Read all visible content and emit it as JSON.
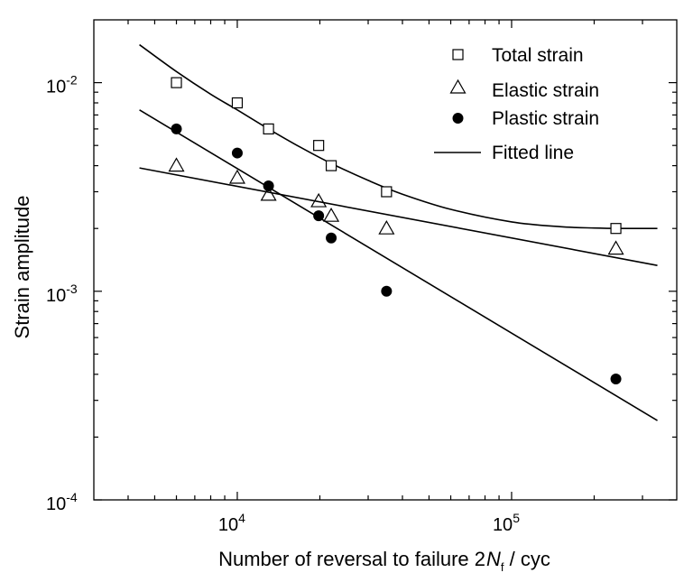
{
  "chart_data": {
    "type": "scatter",
    "title": "",
    "xlabel": {
      "prefix": "Number of reversal to failure 2",
      "italic": "N",
      "subscript": "f",
      "suffix": " / cyc"
    },
    "ylabel": "Strain amplitude",
    "xscale": "log",
    "yscale": "log",
    "xlim": [
      3000,
      400000
    ],
    "ylim": [
      0.0001,
      0.02
    ],
    "x_ticks": [
      {
        "value": 10000,
        "base": "10",
        "exp": "4"
      },
      {
        "value": 100000,
        "base": "10",
        "exp": "5"
      }
    ],
    "y_ticks": [
      {
        "value": 0.0001,
        "base": "10",
        "exp": "-4"
      },
      {
        "value": 0.001,
        "base": "10",
        "exp": "-3"
      },
      {
        "value": 0.01,
        "base": "10",
        "exp": "-2"
      }
    ],
    "grid": false,
    "legend_position": "top-right",
    "series": [
      {
        "name": "Total strain",
        "marker": "open-square",
        "x": [
          6000,
          10000,
          13000,
          19800,
          22000,
          35000,
          240000
        ],
        "y": [
          0.01,
          0.008,
          0.006,
          0.005,
          0.004,
          0.003,
          0.002
        ]
      },
      {
        "name": "Elastic strain",
        "marker": "open-triangle",
        "x": [
          6000,
          10000,
          13000,
          19800,
          22000,
          35000,
          240000
        ],
        "y": [
          0.004,
          0.0035,
          0.0029,
          0.0027,
          0.0023,
          0.002,
          0.0016
        ]
      },
      {
        "name": "Plastic strain",
        "marker": "filled-circle",
        "x": [
          6000,
          10000,
          13000,
          19800,
          22000,
          35000,
          240000
        ],
        "y": [
          0.006,
          0.0046,
          0.0032,
          0.0023,
          0.0018,
          0.001,
          0.00038
        ]
      }
    ],
    "fitted_lines": {
      "legend_label": "Fitted line",
      "lines": [
        {
          "of": "Total strain",
          "x": [
            4400,
            6000,
            8000,
            10000,
            13000,
            17000,
            22000,
            30000,
            40000,
            60000,
            100000,
            150000,
            200000,
            250000,
            340000
          ],
          "y": [
            0.0152,
            0.0113,
            0.0088,
            0.0074,
            0.006,
            0.0049,
            0.0041,
            0.0034,
            0.00292,
            0.00247,
            0.00215,
            0.00204,
            0.00201,
            0.002,
            0.002
          ]
        },
        {
          "of": "Elastic strain",
          "x": [
            4400,
            340000
          ],
          "y": [
            0.0039,
            0.00133
          ]
        },
        {
          "of": "Plastic strain",
          "x": [
            4400,
            340000
          ],
          "y": [
            0.0074,
            0.00024
          ]
        }
      ]
    }
  }
}
